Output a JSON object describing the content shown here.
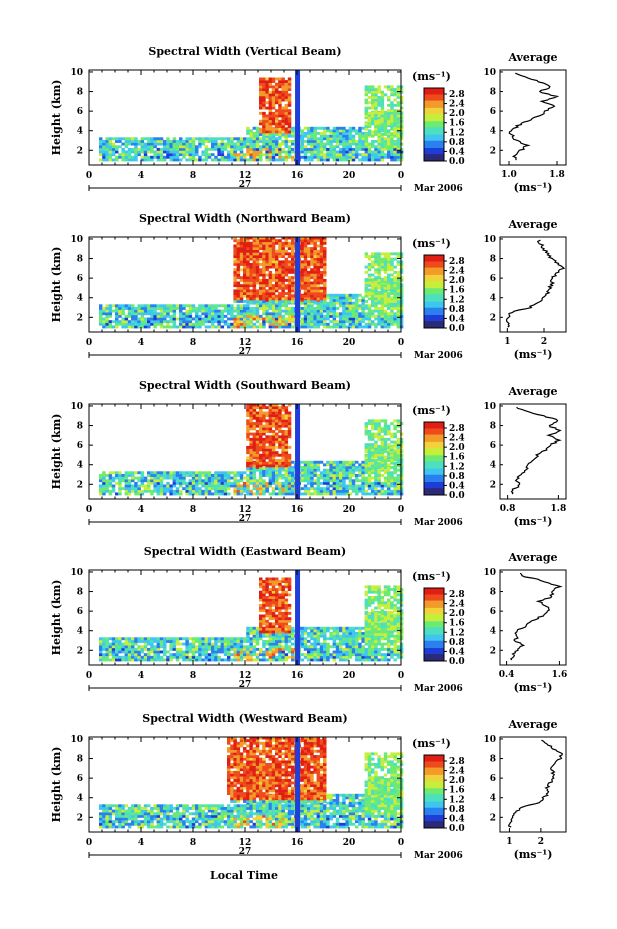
{
  "figure": {
    "x_label": "Local Time",
    "day_label": "27",
    "month_label": "Mar 2006",
    "y_label": "Height (km)",
    "unit_label": "(ms⁻¹)",
    "avg_title": "Average",
    "avg_xlabel": "(ms⁻¹)",
    "colorbar_ticks": [
      "0.0",
      "0.4",
      "0.8",
      "1.2",
      "1.6",
      "2.0",
      "2.4",
      "2.8"
    ],
    "colors": {
      "ink": "#000000",
      "blue_bar": "#1f3fd8",
      "colormap": [
        "#2a2a78",
        "#1e3cd6",
        "#2a80ee",
        "#3fc6f0",
        "#4ce0c0",
        "#6cea72",
        "#c8ee3c",
        "#f2d23a",
        "#f29a2a",
        "#ee4a1c",
        "#e01e14"
      ]
    }
  },
  "chart_data": [
    {
      "type": "heatmap",
      "title": "Spectral Width (Vertical Beam)",
      "x_ticks": [
        "0",
        "4",
        "8",
        "12",
        "16",
        "20",
        "0"
      ],
      "y_ticks": [
        "2",
        "4",
        "6",
        "8",
        "10"
      ],
      "xlim": [
        0,
        24
      ],
      "ylim": [
        0.5,
        10.2
      ],
      "colorbar_ticks": [
        "0.0",
        "0.4",
        "0.8",
        "1.2",
        "1.6",
        "2.0",
        "2.4",
        "2.8"
      ],
      "profile": {
        "x_ticks": [
          "1.0",
          "1.8"
        ],
        "xlim": [
          0.85,
          1.95
        ],
        "heights": [
          1,
          1.5,
          2,
          2.5,
          3,
          3.5,
          4,
          4.5,
          5,
          5.5,
          6,
          6.5,
          7,
          7.5,
          8,
          8.5,
          9,
          9.5,
          10
        ],
        "values": [
          1.1,
          1.08,
          1.2,
          1.3,
          1.12,
          1.05,
          1.02,
          1.15,
          1.3,
          1.5,
          1.62,
          1.75,
          1.55,
          1.8,
          1.5,
          1.7,
          1.5,
          1.25,
          1.02
        ]
      }
    },
    {
      "type": "heatmap",
      "title": "Spectral Width (Northward Beam)",
      "x_ticks": [
        "0",
        "4",
        "8",
        "12",
        "16",
        "20",
        "0"
      ],
      "y_ticks": [
        "2",
        "4",
        "6",
        "8",
        "10"
      ],
      "xlim": [
        0,
        24
      ],
      "ylim": [
        0.5,
        10.2
      ],
      "colorbar_ticks": [
        "0.0",
        "0.4",
        "0.8",
        "1.2",
        "1.6",
        "2.0",
        "2.4",
        "2.8"
      ],
      "profile": {
        "x_ticks": [
          "1",
          "2"
        ],
        "xlim": [
          0.8,
          2.6
        ],
        "heights": [
          1,
          1.5,
          2,
          2.5,
          3,
          3.5,
          4,
          4.5,
          5,
          5.5,
          6,
          6.5,
          7,
          7.5,
          8,
          8.5,
          9,
          9.5,
          10
        ],
        "values": [
          1.05,
          1.0,
          1.02,
          1.1,
          1.6,
          1.85,
          2.0,
          2.1,
          2.15,
          2.25,
          2.2,
          2.35,
          2.5,
          2.4,
          2.2,
          2.1,
          2.0,
          1.9,
          1.85
        ]
      }
    },
    {
      "type": "heatmap",
      "title": "Spectral Width (Southward Beam)",
      "x_ticks": [
        "0",
        "4",
        "8",
        "12",
        "16",
        "20",
        "0"
      ],
      "y_ticks": [
        "2",
        "4",
        "6",
        "8",
        "10"
      ],
      "xlim": [
        0,
        24
      ],
      "ylim": [
        0.5,
        10.2
      ],
      "colorbar_ticks": [
        "0.0",
        "0.4",
        "0.8",
        "1.2",
        "1.6",
        "2.0",
        "2.4",
        "2.8"
      ],
      "profile": {
        "x_ticks": [
          "0.8",
          "1.8"
        ],
        "xlim": [
          0.65,
          1.95
        ],
        "heights": [
          1,
          1.5,
          2,
          2.5,
          3,
          3.5,
          4,
          4.5,
          5,
          5.5,
          6,
          6.5,
          7,
          7.5,
          8,
          8.5,
          9,
          9.5,
          10
        ],
        "values": [
          0.9,
          0.92,
          1.05,
          0.95,
          1.1,
          1.15,
          1.2,
          1.3,
          1.4,
          1.55,
          1.65,
          1.8,
          1.6,
          1.85,
          1.6,
          1.8,
          1.5,
          1.15,
          0.88
        ]
      }
    },
    {
      "type": "heatmap",
      "title": "Spectral Width (Eastward Beam)",
      "x_ticks": [
        "0",
        "4",
        "8",
        "12",
        "16",
        "20",
        "0"
      ],
      "y_ticks": [
        "2",
        "4",
        "6",
        "8",
        "10"
      ],
      "xlim": [
        0,
        24
      ],
      "ylim": [
        0.5,
        10.2
      ],
      "colorbar_ticks": [
        "0.0",
        "0.4",
        "0.8",
        "1.2",
        "1.6",
        "2.0",
        "2.4",
        "2.8"
      ],
      "profile": {
        "x_ticks": [
          "0.4",
          "1.6"
        ],
        "xlim": [
          0.25,
          1.75
        ],
        "heights": [
          1,
          1.5,
          2,
          2.5,
          3,
          3.5,
          4,
          4.5,
          5,
          5.5,
          6,
          6.5,
          7,
          7.5,
          8,
          8.5,
          9,
          9.5,
          10
        ],
        "values": [
          0.5,
          0.55,
          0.62,
          0.75,
          0.6,
          0.65,
          0.62,
          0.85,
          1.0,
          1.2,
          1.35,
          1.3,
          1.15,
          1.45,
          1.4,
          1.6,
          1.3,
          0.85,
          0.62
        ]
      }
    },
    {
      "type": "heatmap",
      "title": "Spectral Width (Westward Beam)",
      "x_ticks": [
        "0",
        "4",
        "8",
        "12",
        "16",
        "20",
        "0"
      ],
      "y_ticks": [
        "2",
        "4",
        "6",
        "8",
        "10"
      ],
      "xlim": [
        0,
        24
      ],
      "ylim": [
        0.5,
        10.2
      ],
      "colorbar_ticks": [
        "0.0",
        "0.4",
        "0.8",
        "1.2",
        "1.6",
        "2.0",
        "2.4",
        "2.8"
      ],
      "profile": {
        "x_ticks": [
          "1",
          "2"
        ],
        "xlim": [
          0.7,
          2.8
        ],
        "heights": [
          1,
          1.5,
          2,
          2.5,
          3,
          3.5,
          4,
          4.5,
          5,
          5.5,
          6,
          6.5,
          7,
          7.5,
          8,
          8.5,
          9,
          9.5,
          10
        ],
        "values": [
          1.0,
          1.05,
          1.1,
          1.15,
          1.4,
          1.95,
          2.1,
          2.25,
          2.2,
          2.3,
          2.35,
          2.4,
          2.3,
          2.5,
          2.6,
          2.7,
          2.4,
          2.2,
          1.9
        ]
      }
    }
  ]
}
